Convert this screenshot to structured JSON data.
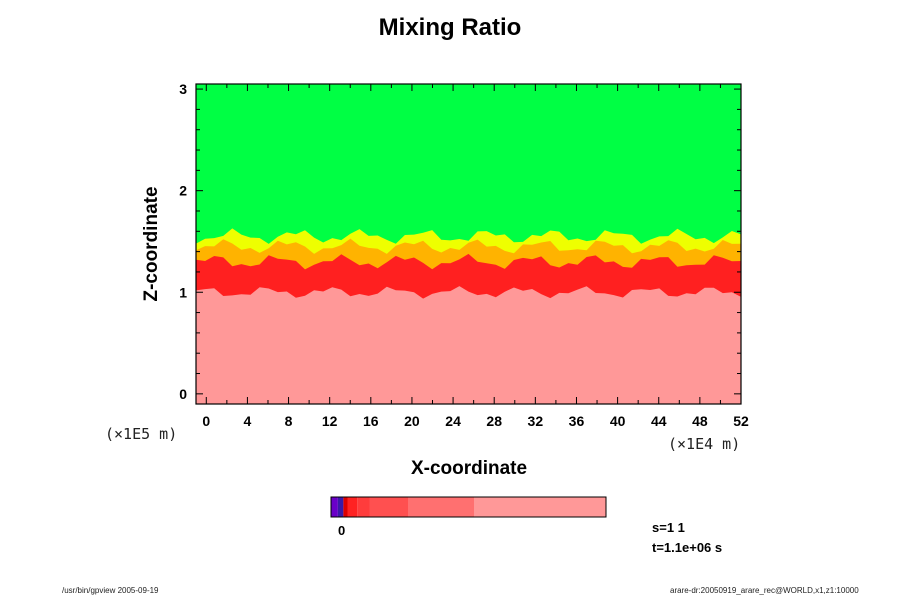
{
  "chart_data": {
    "type": "heatmap",
    "title": "Mixing Ratio",
    "xlabel": "X-coordinate",
    "ylabel": "Z-coordinate",
    "x_unit": "(×1E4 m)",
    "y_unit": "(×1E5 m)",
    "xlim": [
      -1,
      52
    ],
    "ylim": [
      -0.1,
      3.05
    ],
    "xticks": [
      "0",
      "4",
      "8",
      "12",
      "16",
      "20",
      "24",
      "28",
      "32",
      "36",
      "40",
      "44",
      "48",
      "52"
    ],
    "yticks": [
      "0",
      "1",
      "2",
      "3"
    ],
    "regions": [
      {
        "name": "upper",
        "color": "#00ff44",
        "z_from": 1.5,
        "z_to": 3.05
      },
      {
        "name": "transition-top",
        "color": "#eeff00",
        "z_from": 1.4,
        "z_to": 1.55
      },
      {
        "name": "transition-mid",
        "color": "#ffb300",
        "z_from": 1.3,
        "z_to": 1.45
      },
      {
        "name": "mixing-layer",
        "color": "#ff2020",
        "z_from": 1.0,
        "z_to": 1.3
      },
      {
        "name": "lower",
        "color": "#ff9898",
        "z_from": -0.1,
        "z_to": 1.0
      }
    ],
    "colorbar": {
      "segments": [
        {
          "color": "#6a00c8",
          "width": 0.025
        },
        {
          "color": "#3a1aa8",
          "width": 0.02
        },
        {
          "color": "#dd0000",
          "width": 0.015
        },
        {
          "color": "#ff2222",
          "width": 0.035
        },
        {
          "color": "#ff3c3c",
          "width": 0.045
        },
        {
          "color": "#ff5050",
          "width": 0.14
        },
        {
          "color": "#ff7070",
          "width": 0.24
        },
        {
          "color": "#ff9898",
          "width": 0.48
        }
      ],
      "label": "0"
    }
  },
  "info": {
    "step": "s=1 1",
    "time": "t=1.1e+06 s"
  },
  "footer": {
    "left": "/usr/bin/gpview 2005-09-19",
    "right": "arare-dr:20050919_arare_rec@WORLD,x1,z1:10000"
  }
}
